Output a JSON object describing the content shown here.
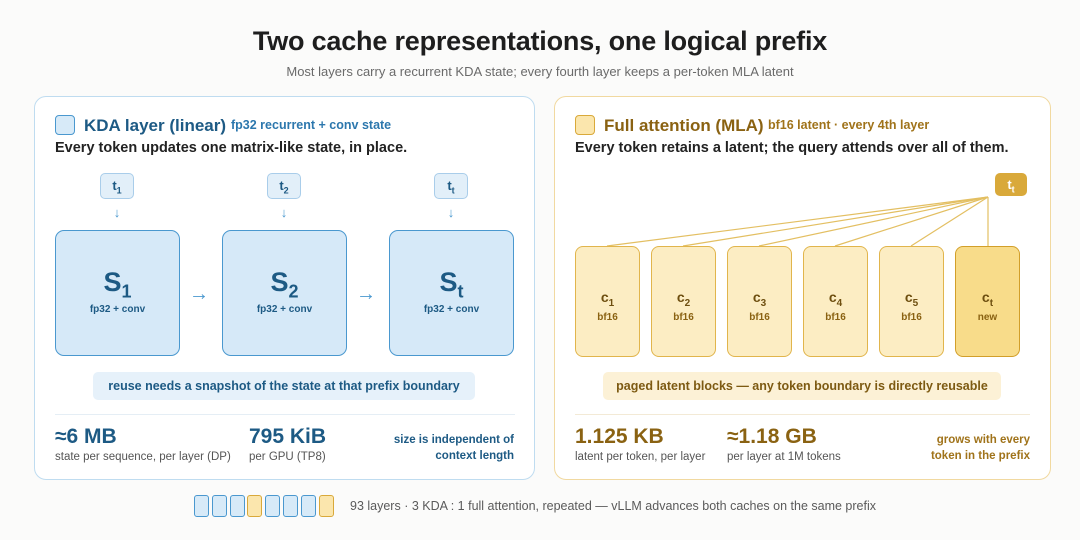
{
  "header": {
    "title": "Two cache representations, one logical prefix",
    "subtitle": "Most layers carry a recurrent KDA state; every fourth layer keeps a per-token MLA latent"
  },
  "kda": {
    "title": "KDA layer (linear)",
    "tag": "fp32 recurrent + conv state",
    "desc": "Every token updates one matrix-like state, in place.",
    "tokens": [
      {
        "base": "t",
        "sub": "1"
      },
      {
        "base": "t",
        "sub": "2"
      },
      {
        "base": "t",
        "sub": "t"
      }
    ],
    "arrow_down": "↓",
    "arrow_right": "→",
    "states": [
      {
        "base": "S",
        "sub": "1",
        "label": "fp32 + conv"
      },
      {
        "base": "S",
        "sub": "2",
        "label": "fp32 + conv"
      },
      {
        "base": "S",
        "sub": "t",
        "label": "fp32 + conv"
      }
    ],
    "note": "reuse needs a snapshot of the state at that prefix boundary",
    "stats": [
      {
        "value": "≈6 MB",
        "label": "state per sequence, per layer (DP)"
      },
      {
        "value": "795 KiB",
        "label": "per GPU (TP8)"
      }
    ],
    "right_note": [
      "size is independent of",
      "context length"
    ]
  },
  "mla": {
    "title": "Full attention (MLA)",
    "tag": "bf16 latent · every 4th layer",
    "desc": "Every token retains a latent; the query attends over all of them.",
    "query": {
      "base": "t",
      "sub": "t"
    },
    "latents": [
      {
        "base": "c",
        "sub": "1",
        "label": "bf16",
        "new": false
      },
      {
        "base": "c",
        "sub": "2",
        "label": "bf16",
        "new": false
      },
      {
        "base": "c",
        "sub": "3",
        "label": "bf16",
        "new": false
      },
      {
        "base": "c",
        "sub": "4",
        "label": "bf16",
        "new": false
      },
      {
        "base": "c",
        "sub": "5",
        "label": "bf16",
        "new": false
      },
      {
        "base": "c",
        "sub": "t",
        "label": "new",
        "new": true
      }
    ],
    "note": "paged latent blocks — any token boundary is directly reusable",
    "stats": [
      {
        "value": "1.125 KB",
        "label": "latent per token, per layer"
      },
      {
        "value": "≈1.18 GB",
        "label": "per layer at 1M tokens"
      }
    ],
    "right_note": [
      "grows with every",
      "token in the prefix"
    ]
  },
  "legend": {
    "pattern": [
      "kda",
      "kda",
      "kda",
      "mla",
      "kda",
      "kda",
      "kda",
      "mla"
    ],
    "text": "93 layers · 3 KDA : 1 full attention, repeated — vLLM advances both caches on the same prefix"
  },
  "colors": {
    "kda_accent": "#4a98cf",
    "kda_text": "#1d5a84",
    "mla_accent": "#d9a93a",
    "mla_text": "#8a6212"
  }
}
